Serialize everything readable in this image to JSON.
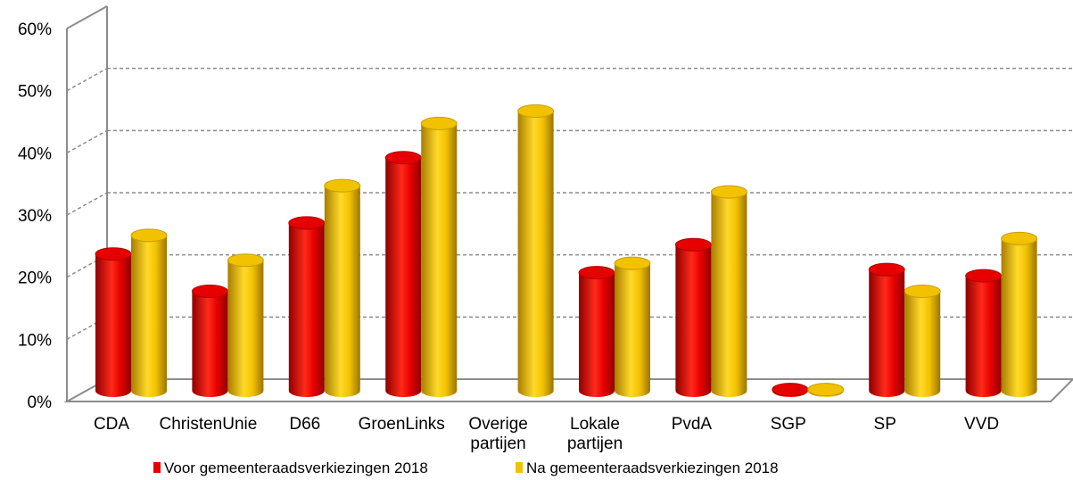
{
  "chart_data": {
    "type": "bar",
    "categories": [
      [
        "CDA"
      ],
      [
        "ChristenUnie"
      ],
      [
        "D66"
      ],
      [
        "GroenLinks"
      ],
      [
        "Overige",
        "partijen"
      ],
      [
        "Lokale",
        "partijen"
      ],
      [
        "PvdA"
      ],
      [
        "SGP"
      ],
      [
        "SP"
      ],
      [
        "VVD"
      ]
    ],
    "series": [
      {
        "name": "Voor gemeenteraadsverkiezingen 2018",
        "color": "#e60000",
        "values": [
          22,
          16,
          27,
          37.5,
          null,
          19,
          23.5,
          0.2,
          19.5,
          18.5
        ]
      },
      {
        "name": "Na gemeenteraadsverkiezingen 2018",
        "color": "#f2c200",
        "values": [
          25,
          21,
          33,
          43,
          45,
          20.5,
          32,
          0.2,
          16,
          24.5
        ]
      }
    ],
    "ylim": [
      0,
      60
    ],
    "yticks": [
      "0%",
      "10%",
      "20%",
      "30%",
      "40%",
      "50%",
      "60%"
    ],
    "grid": true,
    "legend_position": "bottom-left"
  }
}
